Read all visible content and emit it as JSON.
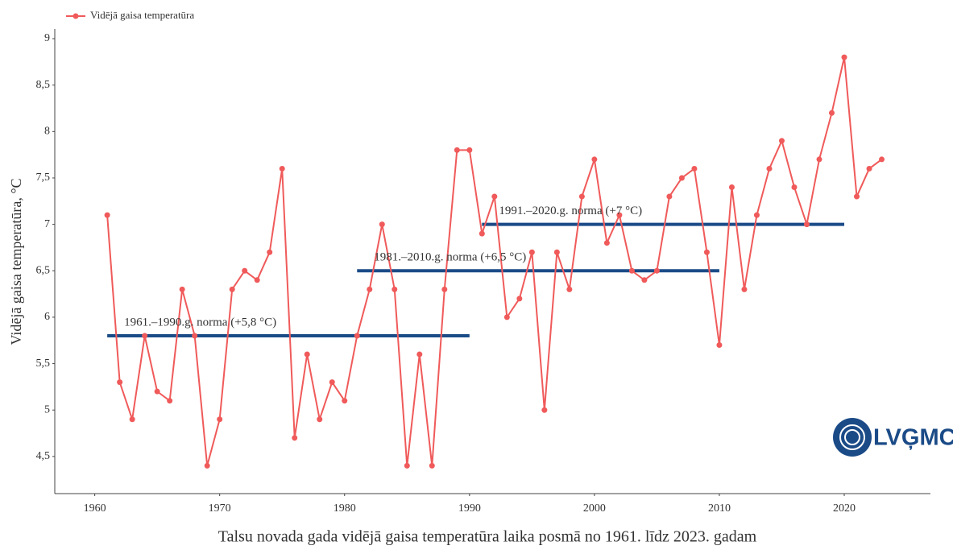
{
  "chart_data": {
    "type": "line",
    "title": "Talsu novada gada vidējā gaisa temperatūra laika posmā no 1961. līdz 2023. gadam",
    "y_label": "Vidējā gaisa temperatūra, °C",
    "logo": "LVĢMC",
    "x": [
      1961,
      1962,
      1963,
      1964,
      1965,
      1966,
      1967,
      1968,
      1969,
      1970,
      1971,
      1972,
      1973,
      1974,
      1975,
      1976,
      1977,
      1978,
      1979,
      1980,
      1981,
      1982,
      1983,
      1984,
      1985,
      1986,
      1987,
      1988,
      1989,
      1990,
      1991,
      1992,
      1993,
      1994,
      1995,
      1996,
      1997,
      1998,
      1999,
      2000,
      2001,
      2002,
      2003,
      2004,
      2005,
      2006,
      2007,
      2008,
      2009,
      2010,
      2011,
      2012,
      2013,
      2014,
      2015,
      2016,
      2017,
      2018,
      2019,
      2020,
      2021,
      2022,
      2023
    ],
    "series": [
      {
        "name": "Vidējā gaisa temperatūra",
        "color": "#f05a5a",
        "values": [
          7.1,
          5.3,
          4.9,
          5.8,
          5.2,
          5.1,
          6.3,
          5.8,
          4.4,
          4.9,
          6.3,
          6.5,
          6.4,
          6.7,
          7.6,
          4.7,
          5.6,
          4.9,
          5.3,
          5.1,
          5.8,
          6.3,
          7.0,
          6.3,
          4.4,
          5.6,
          4.4,
          6.3,
          7.8,
          7.8,
          6.9,
          7.3,
          6.0,
          6.2,
          6.7,
          5.0,
          6.7,
          6.3,
          7.3,
          7.7,
          6.8,
          7.1,
          6.5,
          6.4,
          6.5,
          7.3,
          7.5,
          7.6,
          6.7,
          5.7,
          7.4,
          6.3,
          7.1,
          7.6,
          7.9,
          7.4,
          7.0,
          7.7,
          8.2,
          8.8,
          7.3,
          7.6,
          7.7
        ]
      }
    ],
    "annotations": [
      {
        "text": "1961.–1990.g. norma (+5,8 °C)",
        "x": [
          1961,
          1990
        ],
        "y": 5.8
      },
      {
        "text": "1981.–2010.g. norma (+6,5 °C)",
        "x": [
          1981,
          2010
        ],
        "y": 6.5
      },
      {
        "text": "1991.–2020.g. norma (+7 °C)",
        "x": [
          1991,
          2020
        ],
        "y": 7
      }
    ],
    "annotation_color": "#1b4b87",
    "xlim": [
      1956.8,
      2026.9
    ],
    "ylim": [
      4.1,
      9.1
    ],
    "xticks": [
      1960,
      1970,
      1980,
      1990,
      2000,
      2010,
      2020
    ],
    "yticks": [
      {
        "value": 4.5,
        "label": "4,5"
      },
      5,
      {
        "value": 5.5,
        "label": "5,5"
      },
      6,
      {
        "value": 6.5,
        "label": "6,5"
      },
      7,
      {
        "value": 7.5,
        "label": "7,5"
      },
      8,
      {
        "value": 8.5,
        "label": "8,5"
      },
      9
    ],
    "grid": false,
    "legend": "top-left"
  }
}
